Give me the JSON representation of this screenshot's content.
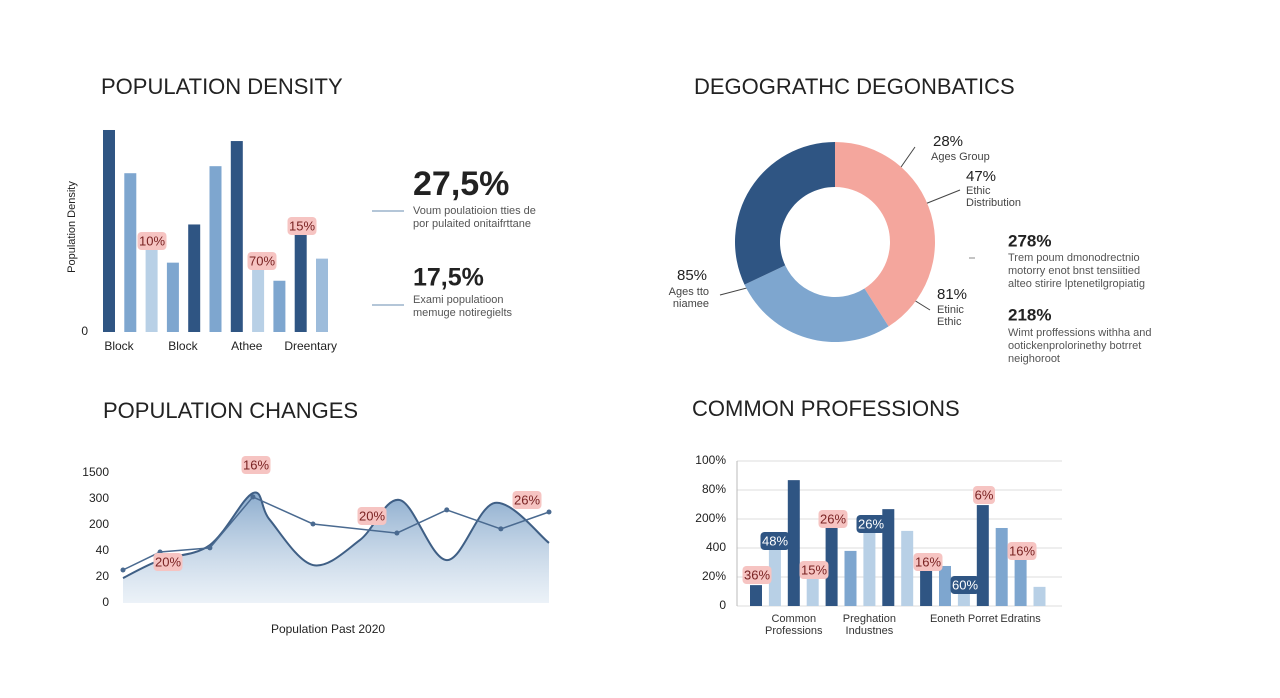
{
  "chart_data": [
    {
      "type": "bar",
      "title": "POPULATION DENSITY",
      "ylabel": "Population Density",
      "categories": [
        "Block",
        null,
        null,
        "Block",
        null,
        null,
        "Athee",
        null,
        null,
        "Dreentary",
        null
      ],
      "values": [
        100.5,
        79,
        43.5,
        34.5,
        53.5,
        82.5,
        95,
        32,
        25.5,
        48.5,
        36.5
      ],
      "colors": [
        "#2f5583",
        "#7ea6cf",
        "#b8d0e6",
        "#7ea6cf",
        "#2f5583",
        "#7ea6cf",
        "#2f5583",
        "#b8d0e6",
        "#7ea6cf",
        "#2f5583",
        "#9dbcdb"
      ],
      "ylim": [
        0,
        100
      ],
      "yticks": [
        0
      ],
      "annotations": [
        {
          "text": "10%",
          "color": "#f6c4c2"
        },
        {
          "text": "70%",
          "color": "#f6c4c2"
        },
        {
          "text": "15%",
          "color": "#f6c4c2"
        }
      ],
      "notes": [
        {
          "value": "27,5%",
          "lines": [
            "Voum poulatioion tties de",
            "por pulaited onitaifrttane"
          ]
        },
        {
          "value": "17,5%",
          "lines": [
            "Exami populatioon",
            "memuge notiregielts"
          ]
        }
      ]
    },
    {
      "type": "donut",
      "title": "DEGOGRATHC DEGONBATICS",
      "values": [
        41,
        27,
        32
      ],
      "colors": [
        "#f4a69d",
        "#7ea6cf",
        "#2f5583"
      ],
      "annotations": [
        [
          "28%",
          "Ages Group"
        ],
        [
          "47%",
          "Ethic",
          "Distribution"
        ],
        [
          "85%",
          "Ages tto",
          "niamee"
        ],
        [
          "81%",
          "Etinic",
          "Ethic"
        ]
      ],
      "notes": [
        {
          "value": "278%",
          "lines": [
            "Trem poum dmonodrectnio",
            "motorry enot bnst tensiitied",
            "alteo stirire lptenetilgropiatig"
          ]
        },
        {
          "value": "218%",
          "lines": [
            "Wimt proffessions withha and",
            "ootickenprolorinethy botrret",
            "neighoroot"
          ]
        }
      ]
    },
    {
      "type": "line",
      "title": "POPULATION CHANGES",
      "xlabel": "Population Past 2020",
      "xlim": [
        0,
        100
      ],
      "ylim": [
        0,
        5.5
      ],
      "yticks": [
        0,
        {
          "value": 1,
          "label": "20"
        },
        {
          "value": 2,
          "label": "40"
        },
        {
          "value": 3,
          "label": "200"
        },
        {
          "value": 4,
          "label": "300"
        },
        {
          "value": 5,
          "label": "1500"
        }
      ],
      "series": [
        {
          "color": "#3f5f85",
          "fill": "#7fa3c8",
          "style": "area",
          "x": [
            0,
            8.7,
            20.4,
            30.5,
            34.5,
            44.6,
            55.6,
            65,
            76,
            87.3,
            100
          ],
          "values": [
            0.96,
            1.65,
            2.23,
            4.23,
            3.19,
            1.46,
            2.42,
            3.96,
            1.65,
            3.85,
            2.31
          ]
        },
        {
          "color": "#4a6a90",
          "style": "line",
          "x": [
            0,
            8.7,
            20.4,
            30.5,
            44.6,
            64.3,
            76,
            88.7,
            100
          ],
          "values": [
            1.27,
            1.96,
            2.12,
            4.08,
            3.04,
            2.69,
            3.58,
            2.85,
            3.5
          ]
        }
      ],
      "annotations": [
        {
          "text": "16%",
          "color": "#f6c4c2"
        },
        {
          "text": "20%",
          "color": "#f6c4c2"
        },
        {
          "text": "20%",
          "color": "#f6c4c2"
        },
        {
          "text": "26%",
          "color": "#f6c4c2"
        }
      ]
    },
    {
      "type": "bar",
      "title": "COMMON PROFESSIONS",
      "categories": [
        null,
        null,
        "Common Professions",
        null,
        null,
        null,
        "Preghation Industnes",
        null,
        null,
        null,
        null,
        "Eoneth Porret",
        null,
        null,
        "Edratins",
        null
      ],
      "values": [
        0.72,
        2.1,
        4.34,
        0.97,
        2.69,
        1.9,
        2.62,
        3.34,
        2.59,
        1.24,
        1.38,
        0.72,
        3.48,
        2.69,
        1.76,
        0.66
      ],
      "colors": [
        "#2f5583",
        "#b8d0e6",
        "#2f5583",
        "#b8d0e6",
        "#2f5583",
        "#7ea6cf",
        "#b8d0e6",
        "#2f5583",
        "#b8d0e6",
        "#2f5583",
        "#7ea6cf",
        "#b8d0e6",
        "#2f5583",
        "#7ea6cf",
        "#7ea6cf",
        "#b8d0e6"
      ],
      "ylim": [
        0,
        5
      ],
      "grid": true,
      "yticks": [
        0,
        {
          "value": 1,
          "label": "20%"
        },
        {
          "value": 2,
          "label": "400"
        },
        {
          "value": 3,
          "label": "200%"
        },
        {
          "value": 4,
          "label": "80%"
        },
        {
          "value": 5,
          "label": "100%"
        }
      ],
      "annotations": [
        {
          "text": "36%",
          "color": "#f6c4c2"
        },
        {
          "text": "48%",
          "color": "#2f5583"
        },
        {
          "text": "15%",
          "color": "#f6c4c2"
        },
        {
          "text": "26%",
          "color": "#f6c4c2"
        },
        {
          "text": "26%",
          "color": "#2f5583"
        },
        {
          "text": "16%",
          "color": "#f6c4c2"
        },
        {
          "text": "6%",
          "color": "#f6c4c2"
        },
        {
          "text": "60%",
          "color": "#2f5583"
        },
        {
          "text": "16%",
          "color": "#f6c4c2"
        }
      ]
    }
  ]
}
